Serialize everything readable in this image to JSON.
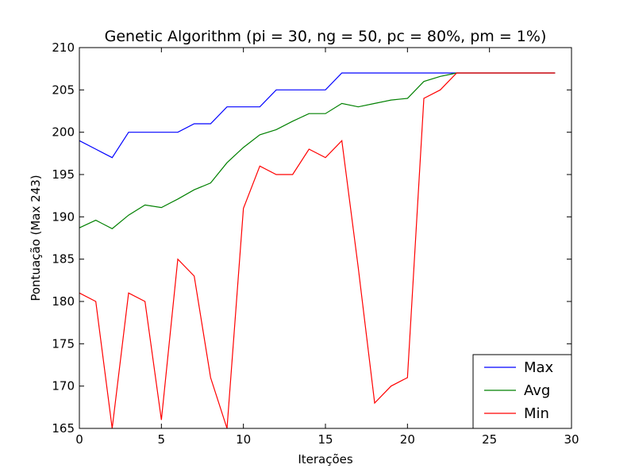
{
  "chart_data": {
    "type": "line",
    "title": "Genetic Algorithm (pi = 30, ng = 50, pc = 80%, pm = 1%)",
    "xlabel": "Iterações",
    "ylabel": "Pontuação (Max 243)",
    "xlim": [
      0,
      30
    ],
    "ylim": [
      165,
      210
    ],
    "xticks": [
      0,
      5,
      10,
      15,
      20,
      25,
      30
    ],
    "yticks": [
      165,
      170,
      175,
      180,
      185,
      190,
      195,
      200,
      205,
      210
    ],
    "grid": false,
    "legend": "bottom-right",
    "x": [
      0,
      1,
      2,
      3,
      4,
      5,
      6,
      7,
      8,
      9,
      10,
      11,
      12,
      13,
      14,
      15,
      16,
      17,
      18,
      19,
      20,
      21,
      22,
      23,
      24,
      25,
      26,
      27,
      28,
      29
    ],
    "series": [
      {
        "name": "Max",
        "color": "#0000ff",
        "values": [
          199,
          198,
          197,
          200,
          200,
          200,
          200,
          201,
          201,
          203,
          203,
          203,
          205,
          205,
          205,
          205,
          207,
          207,
          207,
          207,
          207,
          207,
          207,
          207,
          207,
          207,
          207,
          207,
          207,
          207
        ]
      },
      {
        "name": "Avg",
        "color": "#008000",
        "values": [
          188.7,
          189.6,
          188.6,
          190.2,
          191.4,
          191.1,
          192.1,
          193.2,
          194.0,
          196.4,
          198.2,
          199.7,
          200.3,
          201.3,
          202.2,
          202.2,
          203.4,
          203.0,
          203.4,
          203.8,
          204.0,
          206.0,
          206.6,
          207,
          207,
          207,
          207,
          207,
          207,
          207
        ]
      },
      {
        "name": "Min",
        "color": "#ff0000",
        "values": [
          181,
          180,
          165,
          181,
          180,
          166,
          185,
          183,
          171,
          165,
          191,
          196,
          195,
          195,
          198,
          197,
          199,
          184,
          168,
          170,
          171,
          204,
          205,
          207,
          207,
          207,
          207,
          207,
          207,
          207
        ]
      }
    ]
  }
}
